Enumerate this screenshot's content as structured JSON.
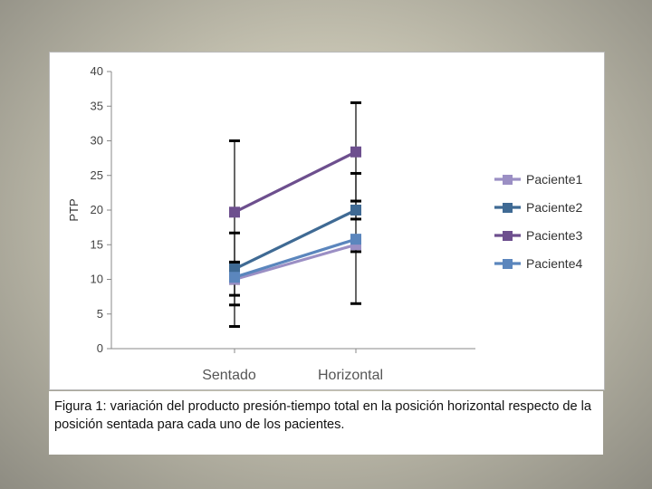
{
  "caption": "Figura 1: variación del producto presión-tiempo total en la posición horizontal respecto de la posición sentada para cada uno de los pacientes.",
  "chart_data": {
    "type": "line",
    "title": "",
    "xlabel": "",
    "ylabel": "PTP",
    "categories": [
      "Sentado",
      "Horizontal"
    ],
    "ylim": [
      0,
      40
    ],
    "yticks": [
      0,
      5,
      10,
      15,
      20,
      25,
      30,
      35,
      40
    ],
    "grid": false,
    "legend_position": "right",
    "series": [
      {
        "name": "Paciente1",
        "color": "#9b8fc4",
        "values": [
          10.0,
          15.0
        ],
        "err_low": [
          7.7,
          14.0
        ],
        "err_high": [
          12.3,
          16.0
        ]
      },
      {
        "name": "Paciente2",
        "color": "#3f6a94",
        "values": [
          11.5,
          20.0
        ],
        "err_low": [
          6.3,
          18.7
        ],
        "err_high": [
          16.7,
          21.3
        ]
      },
      {
        "name": "Paciente3",
        "color": "#6d4f8e",
        "values": [
          19.7,
          28.4
        ],
        "err_low": [
          9.4,
          21.3
        ],
        "err_high": [
          30.0,
          35.5
        ]
      },
      {
        "name": "Paciente4",
        "color": "#5b86bd",
        "values": [
          10.3,
          15.8
        ],
        "err_low": [
          3.2,
          6.5
        ],
        "err_high": [
          12.5,
          25.3
        ]
      }
    ]
  }
}
